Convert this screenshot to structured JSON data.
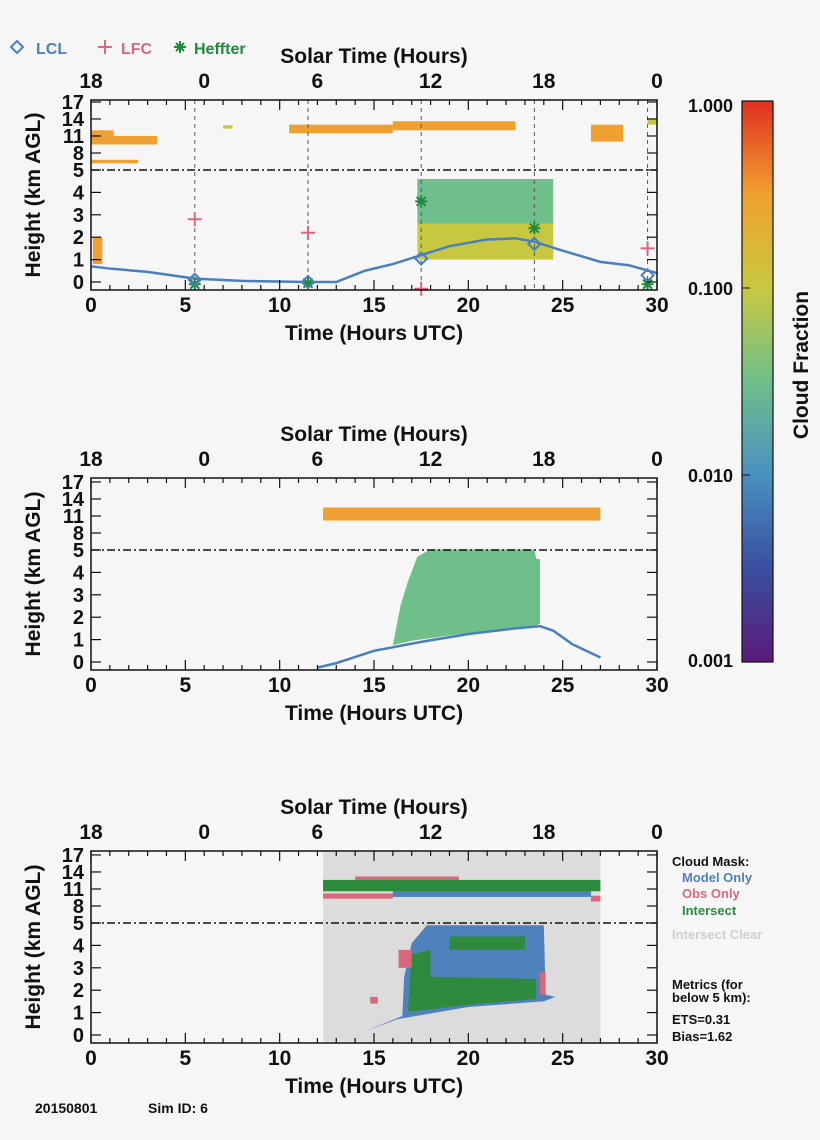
{
  "chart_data": [
    {
      "type": "heatmap",
      "panel": "observed",
      "title": "Solar Time (Hours)",
      "xlabel": "Time (Hours UTC)",
      "ylabel": "Height (km AGL)",
      "xlim": [
        0,
        30
      ],
      "x_ticks": [
        "0",
        "5",
        "10",
        "15",
        "20",
        "25",
        "30"
      ],
      "solar_ticks": [
        "18",
        "0",
        "6",
        "12",
        "18",
        "0"
      ],
      "y_ticks": [
        "0",
        "1",
        "2",
        "3",
        "4",
        "5",
        "8",
        "11",
        "14",
        "17"
      ],
      "legend": [
        {
          "name": "LCL",
          "symbol": "diamond",
          "color": "#4a7fbf"
        },
        {
          "name": "LFC",
          "symbol": "plus",
          "color": "#d9687a"
        },
        {
          "name": "Heffter",
          "symbol": "asterisk",
          "color": "#1f8a3c"
        }
      ],
      "sounding_times": [
        5.5,
        11.5,
        17.5,
        23.5,
        29.5
      ],
      "lcl": [
        [
          5.5,
          0.1
        ],
        [
          11.5,
          0.0
        ],
        [
          17.5,
          1.05
        ],
        [
          23.5,
          1.7
        ],
        [
          29.5,
          0.3
        ]
      ],
      "lfc": [
        [
          5.5,
          2.8
        ],
        [
          11.5,
          2.2
        ],
        [
          17.5,
          -0.3
        ],
        [
          29.5,
          1.5
        ]
      ],
      "heffter": [
        [
          5.5,
          -0.1
        ],
        [
          11.5,
          -0.05
        ],
        [
          17.5,
          3.6
        ],
        [
          23.5,
          2.4
        ],
        [
          29.5,
          -0.1
        ]
      ],
      "lcl_line": [
        [
          0,
          0.7
        ],
        [
          1,
          0.6
        ],
        [
          3,
          0.45
        ],
        [
          5.5,
          0.15
        ],
        [
          8,
          0.05
        ],
        [
          11.5,
          0
        ],
        [
          13,
          0.0
        ],
        [
          14.5,
          0.5
        ],
        [
          16,
          0.8
        ],
        [
          17.5,
          1.2
        ],
        [
          19,
          1.6
        ],
        [
          21,
          1.9
        ],
        [
          22.5,
          1.95
        ],
        [
          23.5,
          1.8
        ],
        [
          25,
          1.4
        ],
        [
          27,
          0.9
        ],
        [
          28.5,
          0.75
        ],
        [
          30,
          0.4
        ]
      ],
      "cloud_regions": [
        {
          "t": [
            0,
            3.5
          ],
          "z": [
            9.5,
            11
          ],
          "fraction": 0.9
        },
        {
          "t": [
            0,
            1.2
          ],
          "z": [
            11,
            12
          ],
          "fraction": 0.8
        },
        {
          "t": [
            0,
            2.5
          ],
          "z": [
            6.2,
            6.8
          ],
          "fraction": 0.7
        },
        {
          "t": [
            0.1,
            0.6
          ],
          "z": [
            0.8,
            2.0
          ],
          "fraction": 0.4
        },
        {
          "t": [
            7,
            7.5
          ],
          "z": [
            12.3,
            12.9
          ],
          "fraction": 0.3
        },
        {
          "t": [
            10.5,
            16
          ],
          "z": [
            11.5,
            13
          ],
          "fraction": 0.5
        },
        {
          "t": [
            16,
            22.5
          ],
          "z": [
            12,
            13.6
          ],
          "fraction": 0.6
        },
        {
          "t": [
            26.5,
            28.2
          ],
          "z": [
            10,
            13
          ],
          "fraction": 0.8
        },
        {
          "t": [
            29.5,
            30
          ],
          "z": [
            13,
            14
          ],
          "fraction": 0.3
        },
        {
          "t": [
            17.3,
            24.5
          ],
          "z": [
            1.0,
            2.6
          ],
          "fraction": 0.3
        },
        {
          "t": [
            17.3,
            24.5
          ],
          "z": [
            2.6,
            4.6
          ],
          "fraction": 0.06
        }
      ]
    },
    {
      "type": "heatmap",
      "panel": "model",
      "title": "Solar Time (Hours)",
      "xlabel": "Time (Hours UTC)",
      "ylabel": "Height (km AGL)",
      "xlim": [
        0,
        30
      ],
      "x_ticks": [
        "0",
        "5",
        "10",
        "15",
        "20",
        "25",
        "30"
      ],
      "solar_ticks": [
        "18",
        "0",
        "6",
        "12",
        "18",
        "0"
      ],
      "y_ticks": [
        "0",
        "1",
        "2",
        "3",
        "4",
        "5",
        "8",
        "11",
        "14",
        "17"
      ],
      "lcl_line": [
        [
          12,
          -0.25
        ],
        [
          13,
          -0.05
        ],
        [
          15,
          0.5
        ],
        [
          17.5,
          0.9
        ],
        [
          20,
          1.25
        ],
        [
          22.5,
          1.5
        ],
        [
          23.8,
          1.6
        ],
        [
          24.5,
          1.4
        ],
        [
          25.5,
          0.8
        ],
        [
          27,
          0.2
        ]
      ],
      "cloud_regions": [
        {
          "t": [
            12.3,
            27
          ],
          "z": [
            10.2,
            12.5
          ],
          "fraction": 0.95
        },
        {
          "poly": [
            [
              16,
              0.75
            ],
            [
              16.4,
              2.5
            ],
            [
              16.8,
              3.6
            ],
            [
              17.3,
              4.7
            ],
            [
              18,
              5.1
            ],
            [
              23.5,
              5.1
            ],
            [
              23.6,
              4.6
            ],
            [
              23.8,
              4.6
            ],
            [
              23.8,
              1.7
            ],
            [
              23.5,
              1.6
            ],
            [
              20,
              1.3
            ],
            [
              17,
              0.95
            ]
          ],
          "fraction": 0.04
        }
      ]
    },
    {
      "type": "heatmap",
      "panel": "cloud_mask",
      "title": "Solar Time (Hours)",
      "xlabel": "Time (Hours UTC)",
      "ylabel": "Height (km AGL)",
      "xlim": [
        0,
        30
      ],
      "x_ticks": [
        "0",
        "5",
        "10",
        "15",
        "20",
        "25",
        "30"
      ],
      "solar_ticks": [
        "18",
        "0",
        "6",
        "12",
        "18",
        "0"
      ],
      "y_ticks": [
        "0",
        "1",
        "2",
        "3",
        "4",
        "5",
        "8",
        "11",
        "14",
        "17"
      ],
      "categories": [
        "Model Only",
        "Obs Only",
        "Intersect",
        "Intersect Clear"
      ],
      "category_colors": {
        "model_only": "#4f81bd",
        "obs_only": "#d9687a",
        "intersect": "#2e8b3e",
        "intersect_clear": "#dcdcdc"
      },
      "regions": [
        {
          "category": "intersect_clear",
          "t": [
            12.3,
            27
          ],
          "z": [
            -0.3,
            17.5
          ]
        },
        {
          "category": "obs_only",
          "t": [
            14,
            19.5
          ],
          "z": [
            12.3,
            13.2
          ]
        },
        {
          "category": "obs_only",
          "t": [
            12.3,
            16
          ],
          "z": [
            9.3,
            10.2
          ]
        },
        {
          "category": "model_only",
          "t": [
            16,
            26.5
          ],
          "z": [
            9.6,
            11.5
          ]
        },
        {
          "category": "intersect",
          "t": [
            12.3,
            27
          ],
          "z": [
            10.6,
            12.6
          ]
        },
        {
          "category": "obs_only",
          "t": [
            26.5,
            27
          ],
          "z": [
            8.8,
            9.8
          ]
        },
        {
          "category": "model_only",
          "poly": [
            [
              14.5,
              0.15
            ],
            [
              16.5,
              0.85
            ],
            [
              16.6,
              2.6
            ],
            [
              17,
              4.1
            ],
            [
              17.8,
              4.9
            ],
            [
              24,
              4.9
            ],
            [
              24.1,
              1.8
            ],
            [
              24.6,
              1.7
            ],
            [
              24,
              1.5
            ],
            [
              20,
              1.25
            ],
            [
              16.2,
              0.7
            ]
          ]
        },
        {
          "category": "intersect",
          "poly": [
            [
              16.8,
              1.1
            ],
            [
              17,
              3.6
            ],
            [
              18,
              3.8
            ],
            [
              18,
              2.6
            ],
            [
              23.6,
              2.5
            ],
            [
              23.6,
              1.6
            ],
            [
              20,
              1.35
            ],
            [
              17,
              1.05
            ]
          ]
        },
        {
          "category": "intersect",
          "t": [
            19,
            23
          ],
          "z": [
            3.8,
            4.4
          ]
        },
        {
          "category": "obs_only",
          "t": [
            16.3,
            17
          ],
          "z": [
            3.0,
            3.8
          ]
        },
        {
          "category": "obs_only",
          "t": [
            14.8,
            15.2
          ],
          "z": [
            1.4,
            1.7
          ]
        },
        {
          "category": "obs_only",
          "t": [
            23.8,
            24.1
          ],
          "z": [
            1.8,
            2.8
          ]
        }
      ],
      "legend_title": "Cloud Mask:",
      "legend": [
        "Model Only",
        "Obs Only",
        "Intersect",
        "Intersect Clear"
      ],
      "metrics_title_1": "Metrics (for",
      "metrics_title_2": "below 5 km):",
      "ets": "ETS=0.31",
      "bias": "Bias=1.62"
    }
  ],
  "colorbar": {
    "label": "Cloud Fraction",
    "scale": "log",
    "range": [
      0.001,
      1.0
    ],
    "ticks": [
      "1.000",
      "0.100",
      "0.010",
      "0.001"
    ],
    "colors": [
      "#5a1a7a",
      "#3a4fa0",
      "#4a90c0",
      "#6fbf8a",
      "#c8c840",
      "#f0a030",
      "#e03020"
    ]
  },
  "footer": {
    "date": "20150801",
    "sim_id": "Sim ID: 6"
  }
}
